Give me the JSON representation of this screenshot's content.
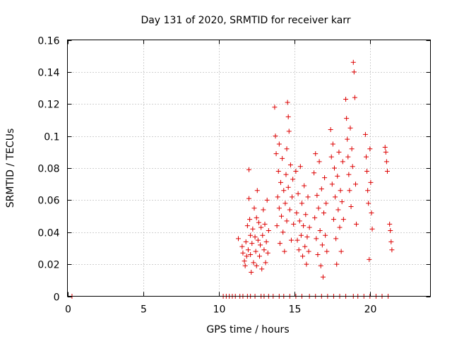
{
  "chart_data": {
    "type": "scatter",
    "title": "Day 131 of 2020, SRMTID for receiver karr",
    "xlabel": "GPS time / hours",
    "ylabel": "SRMTID / TECUs",
    "xlim": [
      0,
      24
    ],
    "ylim": [
      0,
      0.16
    ],
    "xticks": [
      0,
      5,
      10,
      15,
      20
    ],
    "yticks": [
      0,
      0.02,
      0.04,
      0.06,
      0.08,
      0.1,
      0.12,
      0.14,
      0.16
    ],
    "xtick_labels": [
      "0",
      "5",
      "10",
      "15",
      "20"
    ],
    "ytick_labels": [
      "0",
      "0.02",
      "0.04",
      "0.06",
      "0.08",
      "0.1",
      "0.12",
      "0.14",
      "0.16"
    ],
    "grid": true,
    "marker": "+",
    "color": "#dd0000",
    "series": [
      {
        "name": "SRMTID",
        "points": [
          [
            0.3,
            0.0
          ],
          [
            10.3,
            0.0
          ],
          [
            10.5,
            0.0
          ],
          [
            10.7,
            0.0
          ],
          [
            10.9,
            0.0
          ],
          [
            11.1,
            0.0
          ],
          [
            11.4,
            0.0
          ],
          [
            11.6,
            0.0
          ],
          [
            11.9,
            0.0
          ],
          [
            12.1,
            0.0
          ],
          [
            12.4,
            0.0
          ],
          [
            12.8,
            0.0
          ],
          [
            13.0,
            0.0
          ],
          [
            13.3,
            0.0
          ],
          [
            13.6,
            0.0
          ],
          [
            14.0,
            0.0
          ],
          [
            14.3,
            0.0
          ],
          [
            14.7,
            0.0
          ],
          [
            15.1,
            0.0
          ],
          [
            15.5,
            0.0
          ],
          [
            16.0,
            0.0
          ],
          [
            16.4,
            0.0
          ],
          [
            16.8,
            0.0
          ],
          [
            17.2,
            0.0
          ],
          [
            17.6,
            0.0
          ],
          [
            18.0,
            0.0
          ],
          [
            18.4,
            0.0
          ],
          [
            18.9,
            0.0
          ],
          [
            19.2,
            0.0
          ],
          [
            19.6,
            0.0
          ],
          [
            20.0,
            0.0
          ],
          [
            20.4,
            0.0
          ],
          [
            20.8,
            0.0
          ],
          [
            21.2,
            0.0
          ],
          [
            11.3,
            0.036
          ],
          [
            11.55,
            0.031
          ],
          [
            11.6,
            0.027
          ],
          [
            11.7,
            0.022
          ],
          [
            11.75,
            0.019
          ],
          [
            11.8,
            0.034
          ],
          [
            11.85,
            0.025
          ],
          [
            11.9,
            0.044
          ],
          [
            11.95,
            0.029
          ],
          [
            12.0,
            0.079
          ],
          [
            12.0,
            0.061
          ],
          [
            12.05,
            0.048
          ],
          [
            12.1,
            0.026
          ],
          [
            12.1,
            0.038
          ],
          [
            12.15,
            0.015
          ],
          [
            12.2,
            0.033
          ],
          [
            12.25,
            0.042
          ],
          [
            12.3,
            0.021
          ],
          [
            12.35,
            0.055
          ],
          [
            12.4,
            0.037
          ],
          [
            12.45,
            0.028
          ],
          [
            12.5,
            0.049
          ],
          [
            12.5,
            0.019
          ],
          [
            12.55,
            0.066
          ],
          [
            12.6,
            0.035
          ],
          [
            12.65,
            0.046
          ],
          [
            12.7,
            0.025
          ],
          [
            12.75,
            0.032
          ],
          [
            12.8,
            0.043
          ],
          [
            12.85,
            0.017
          ],
          [
            12.9,
            0.038
          ],
          [
            12.95,
            0.054
          ],
          [
            13.0,
            0.029
          ],
          [
            13.05,
            0.045
          ],
          [
            13.1,
            0.021
          ],
          [
            13.15,
            0.034
          ],
          [
            13.2,
            0.06
          ],
          [
            13.25,
            0.027
          ],
          [
            13.3,
            0.041
          ],
          [
            13.7,
            0.118
          ],
          [
            13.75,
            0.1
          ],
          [
            13.8,
            0.089
          ],
          [
            13.85,
            0.044
          ],
          [
            13.9,
            0.062
          ],
          [
            13.95,
            0.078
          ],
          [
            14.0,
            0.055
          ],
          [
            14.0,
            0.095
          ],
          [
            14.05,
            0.033
          ],
          [
            14.1,
            0.071
          ],
          [
            14.15,
            0.05
          ],
          [
            14.2,
            0.086
          ],
          [
            14.25,
            0.04
          ],
          [
            14.3,
            0.066
          ],
          [
            14.35,
            0.028
          ],
          [
            14.4,
            0.058
          ],
          [
            14.45,
            0.076
          ],
          [
            14.5,
            0.047
          ],
          [
            14.5,
            0.092
          ],
          [
            14.55,
            0.121
          ],
          [
            14.6,
            0.112
          ],
          [
            14.6,
            0.068
          ],
          [
            14.65,
            0.103
          ],
          [
            14.7,
            0.054
          ],
          [
            14.75,
            0.082
          ],
          [
            14.8,
            0.035
          ],
          [
            14.85,
            0.062
          ],
          [
            14.9,
            0.073
          ],
          [
            14.95,
            0.045
          ],
          [
            15.1,
            0.078
          ],
          [
            15.15,
            0.052
          ],
          [
            15.2,
            0.035
          ],
          [
            15.25,
            0.064
          ],
          [
            15.3,
            0.029
          ],
          [
            15.35,
            0.047
          ],
          [
            15.4,
            0.081
          ],
          [
            15.45,
            0.038
          ],
          [
            15.5,
            0.058
          ],
          [
            15.55,
            0.025
          ],
          [
            15.6,
            0.044
          ],
          [
            15.65,
            0.069
          ],
          [
            15.7,
            0.031
          ],
          [
            15.75,
            0.051
          ],
          [
            15.8,
            0.02
          ],
          [
            15.85,
            0.037
          ],
          [
            15.9,
            0.062
          ],
          [
            15.95,
            0.028
          ],
          [
            16.0,
            0.043
          ],
          [
            16.3,
            0.077
          ],
          [
            16.35,
            0.049
          ],
          [
            16.4,
            0.089
          ],
          [
            16.45,
            0.036
          ],
          [
            16.5,
            0.063
          ],
          [
            16.55,
            0.026
          ],
          [
            16.6,
            0.055
          ],
          [
            16.65,
            0.084
          ],
          [
            16.7,
            0.041
          ],
          [
            16.75,
            0.019
          ],
          [
            16.8,
            0.067
          ],
          [
            16.85,
            0.032
          ],
          [
            16.9,
            0.012
          ],
          [
            16.95,
            0.052
          ],
          [
            17.0,
            0.074
          ],
          [
            17.05,
            0.038
          ],
          [
            17.1,
            0.058
          ],
          [
            17.15,
            0.028
          ],
          [
            17.4,
            0.104
          ],
          [
            17.45,
            0.087
          ],
          [
            17.5,
            0.07
          ],
          [
            17.55,
            0.095
          ],
          [
            17.6,
            0.048
          ],
          [
            17.65,
            0.08
          ],
          [
            17.7,
            0.062
          ],
          [
            17.75,
            0.036
          ],
          [
            17.8,
            0.02
          ],
          [
            17.85,
            0.075
          ],
          [
            17.9,
            0.054
          ],
          [
            17.95,
            0.09
          ],
          [
            18.0,
            0.043
          ],
          [
            18.05,
            0.066
          ],
          [
            18.1,
            0.028
          ],
          [
            18.15,
            0.059
          ],
          [
            18.2,
            0.084
          ],
          [
            18.25,
            0.048
          ],
          [
            18.4,
            0.123
          ],
          [
            18.45,
            0.111
          ],
          [
            18.5,
            0.098
          ],
          [
            18.55,
            0.087
          ],
          [
            18.6,
            0.076
          ],
          [
            18.65,
            0.066
          ],
          [
            18.7,
            0.105
          ],
          [
            18.75,
            0.056
          ],
          [
            18.8,
            0.092
          ],
          [
            18.85,
            0.081
          ],
          [
            18.9,
            0.146
          ],
          [
            18.95,
            0.14
          ],
          [
            19.0,
            0.124
          ],
          [
            19.05,
            0.07
          ],
          [
            19.1,
            0.045
          ],
          [
            19.7,
            0.101
          ],
          [
            19.75,
            0.087
          ],
          [
            19.8,
            0.078
          ],
          [
            19.85,
            0.066
          ],
          [
            19.9,
            0.058
          ],
          [
            19.95,
            0.023
          ],
          [
            20.0,
            0.092
          ],
          [
            20.05,
            0.071
          ],
          [
            20.1,
            0.052
          ],
          [
            20.15,
            0.042
          ],
          [
            21.0,
            0.093
          ],
          [
            21.05,
            0.09
          ],
          [
            21.1,
            0.084
          ],
          [
            21.15,
            0.078
          ],
          [
            21.3,
            0.045
          ],
          [
            21.35,
            0.041
          ],
          [
            21.4,
            0.034
          ],
          [
            21.45,
            0.029
          ]
        ]
      }
    ]
  }
}
